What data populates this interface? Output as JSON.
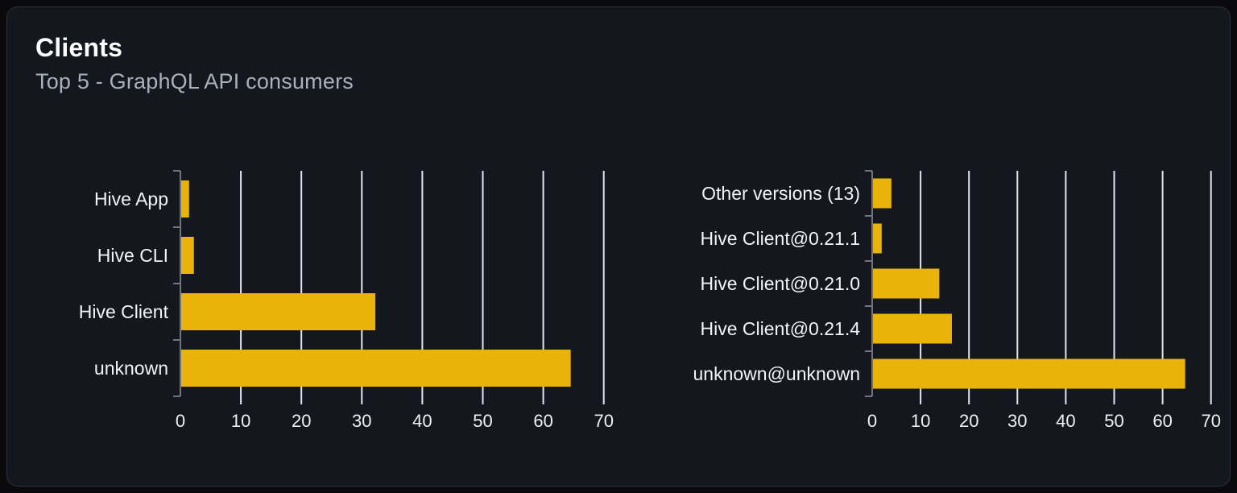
{
  "panel": {
    "title": "Clients",
    "subtitle": "Top 5 - GraphQL API consumers"
  },
  "colors": {
    "bar": "#e9b309",
    "gridline": "#e2e5ee",
    "axis": "#6f747e",
    "category_label": "#f3f4f6",
    "tick_label": "#eef0f4",
    "card_background": "#14171d",
    "page_background": "#0a0a0c",
    "title": "#ffffff",
    "subtitle": "#abb1bb"
  },
  "chart_data": [
    {
      "type": "bar",
      "orientation": "horizontal",
      "name": "clients-by-name",
      "categories": [
        "Hive App",
        "Hive CLI",
        "Hive Client",
        "unknown"
      ],
      "values": [
        1.3,
        2.1,
        32.1,
        64.4
      ],
      "xlim": [
        0,
        70
      ],
      "xticks": [
        0,
        10,
        20,
        30,
        40,
        50,
        60,
        70
      ],
      "grid": true,
      "legend": false,
      "value_labels": false
    },
    {
      "type": "bar",
      "orientation": "horizontal",
      "name": "clients-by-version",
      "categories": [
        "Other versions (13)",
        "Hive Client@0.21.1",
        "Hive Client@0.21.0",
        "Hive Client@0.21.4",
        "unknown@unknown"
      ],
      "values": [
        3.8,
        1.8,
        13.7,
        16.3,
        64.5
      ],
      "xlim": [
        0,
        70
      ],
      "xticks": [
        0,
        10,
        20,
        30,
        40,
        50,
        60,
        70
      ],
      "grid": true,
      "legend": false,
      "value_labels": false
    }
  ]
}
